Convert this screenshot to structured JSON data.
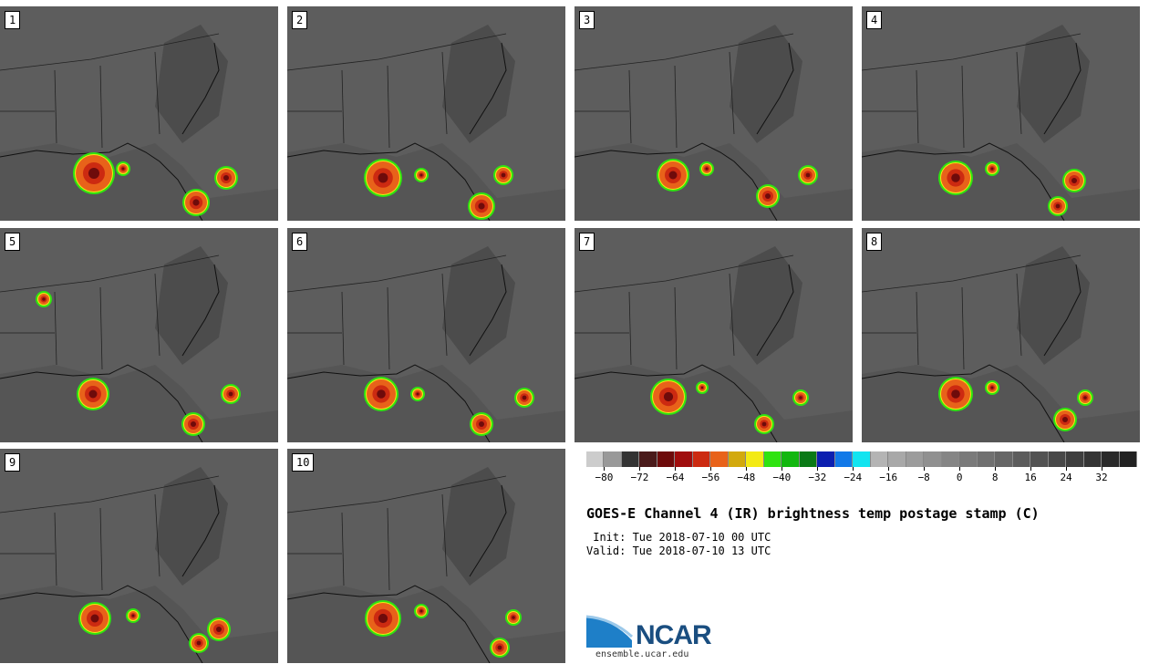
{
  "panels": [
    {
      "label": "1"
    },
    {
      "label": "2"
    },
    {
      "label": "3"
    },
    {
      "label": "4"
    },
    {
      "label": "5"
    },
    {
      "label": "6"
    },
    {
      "label": "7"
    },
    {
      "label": "8"
    },
    {
      "label": "9"
    },
    {
      "label": "10"
    }
  ],
  "colorbar": {
    "colors": [
      "#cccccc",
      "#999999",
      "#333333",
      "#4a1a1a",
      "#6e0b0b",
      "#a00d0d",
      "#cc2a11",
      "#e8621a",
      "#d2a90d",
      "#f3ea14",
      "#2fe310",
      "#12b70f",
      "#0a7a16",
      "#0c1fb0",
      "#1179e8",
      "#12e4f0",
      "#b4b4b4",
      "#a8a8a8",
      "#9c9c9c",
      "#909090",
      "#858585",
      "#7a7a7a",
      "#707070",
      "#666666",
      "#5c5c5c",
      "#525252",
      "#484848",
      "#3e3e3e",
      "#343434",
      "#2a2a2a",
      "#222222"
    ],
    "tick_labels": [
      "−80",
      "−72",
      "−64",
      "−56",
      "−48",
      "−40",
      "−32",
      "−24",
      "−16",
      "−8",
      "0",
      "8",
      "16",
      "24",
      "32"
    ]
  },
  "title": "GOES-E Channel 4 (IR) brightness temp postage stamp (C)",
  "init": " Init: Tue 2018-07-10 00 UTC",
  "valid": "Valid: Tue 2018-07-10 13 UTC",
  "logo_text": "NCAR",
  "url": "ensemble.ucar.edu"
}
